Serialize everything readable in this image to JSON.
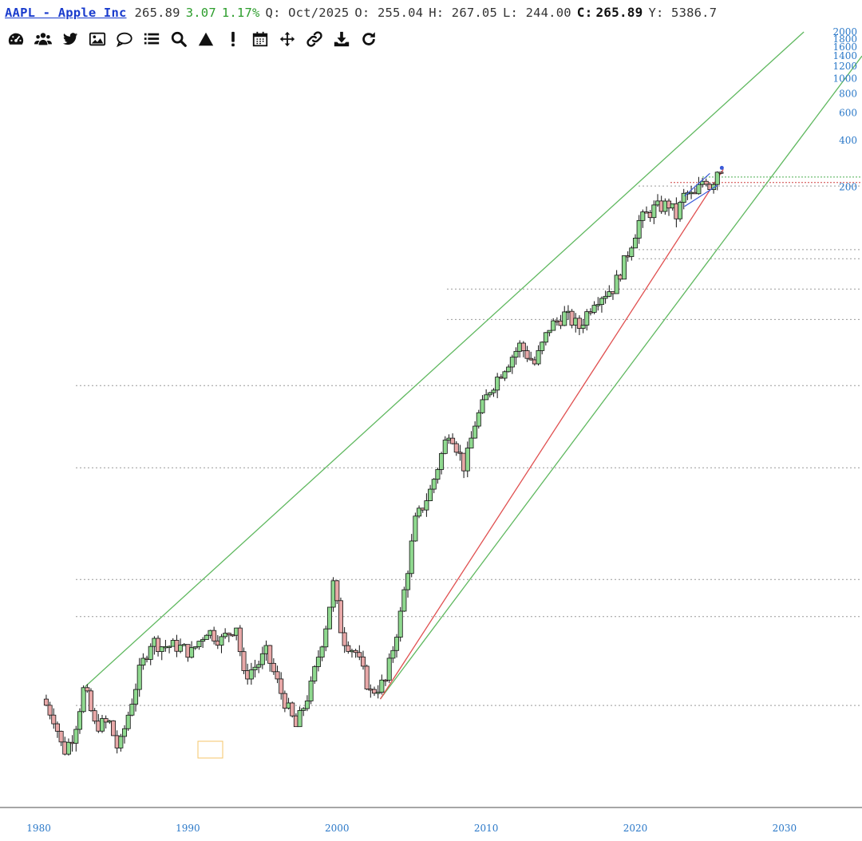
{
  "header": {
    "symbol": "AAPL - Apple Inc",
    "last": "265.89",
    "change": "3.07",
    "change_pct": "1.17%",
    "period": "Q: Oct/2025",
    "open": "O: 255.04",
    "high": "H: 267.05",
    "low": "L: 244.00",
    "close_label": "C:",
    "close_value": "265.89",
    "extra": "Y: 5386.7"
  },
  "toolbar": [
    {
      "name": "dashboard-icon"
    },
    {
      "name": "users-icon"
    },
    {
      "name": "twitter-icon"
    },
    {
      "name": "image-icon"
    },
    {
      "name": "comment-icon"
    },
    {
      "name": "list-icon"
    },
    {
      "name": "search-icon"
    },
    {
      "name": "triangle-icon"
    },
    {
      "name": "exclamation-icon"
    },
    {
      "name": "calendar-icon"
    },
    {
      "name": "move-icon"
    },
    {
      "name": "link-icon"
    },
    {
      "name": "download-icon"
    },
    {
      "name": "refresh-icon"
    }
  ],
  "colors": {
    "up": "#8fd98f",
    "down": "#e8a8a8",
    "trendline": "#5fb85f",
    "redline": "#e05050",
    "axis": "#2a78c8"
  },
  "chart_data": {
    "type": "candlestick",
    "scale": "log",
    "x_ticks": [
      "1980",
      "1990",
      "2000",
      "2010",
      "2020",
      "2030"
    ],
    "y_ticks": [
      "2000",
      "1800",
      "1600",
      "1400",
      "1200",
      "1000",
      "800",
      "600",
      "400",
      "200"
    ],
    "xlim": [
      1977.4,
      2035.2
    ],
    "ylim": [
      0.02,
      2000
    ],
    "support_levels": [
      0.091,
      0.34,
      0.59,
      3.1,
      10.5,
      28,
      44,
      69,
      79,
      203
    ],
    "trendlines": [
      {
        "color": "green",
        "points": [
          [
            1983.1,
            0.12
          ],
          [
            2031.3,
            2000
          ]
        ]
      },
      {
        "color": "green",
        "points": [
          [
            2002.9,
            0.1
          ],
          [
            2035.2,
            1400
          ]
        ]
      },
      {
        "color": "red",
        "points": [
          [
            2002.9,
            0.1
          ],
          [
            2025.9,
            260
          ]
        ]
      }
    ],
    "price_path": [
      [
        1980.5,
        0.1
      ],
      [
        1981.3,
        0.075
      ],
      [
        1981.9,
        0.045
      ],
      [
        1982.6,
        0.06
      ],
      [
        1983.3,
        0.12
      ],
      [
        1984.0,
        0.068
      ],
      [
        1985.0,
        0.07
      ],
      [
        1985.6,
        0.046
      ],
      [
        1987.0,
        0.15
      ],
      [
        1987.8,
        0.24
      ],
      [
        1988.5,
        0.22
      ],
      [
        1989.5,
        0.22
      ],
      [
        1990.5,
        0.2
      ],
      [
        1991.5,
        0.28
      ],
      [
        1992.5,
        0.24
      ],
      [
        1993.5,
        0.3
      ],
      [
        1994.0,
        0.14
      ],
      [
        1995.0,
        0.17
      ],
      [
        1995.5,
        0.2
      ],
      [
        1996.5,
        0.11
      ],
      [
        1997.5,
        0.066
      ],
      [
        1998.5,
        0.12
      ],
      [
        1999.5,
        0.3
      ],
      [
        2000.0,
        0.55
      ],
      [
        2000.6,
        0.25
      ],
      [
        2001.5,
        0.2
      ],
      [
        2002.5,
        0.11
      ],
      [
        2003.5,
        0.13
      ],
      [
        2004.5,
        0.35
      ],
      [
        2005.5,
        1.4
      ],
      [
        2006.5,
        2.2
      ],
      [
        2007.8,
        5.6
      ],
      [
        2008.8,
        3.1
      ],
      [
        2009.5,
        6.0
      ],
      [
        2010.5,
        10.0
      ],
      [
        2011.5,
        14.0
      ],
      [
        2012.5,
        19.0
      ],
      [
        2013.5,
        14.5
      ],
      [
        2014.5,
        25.0
      ],
      [
        2015.5,
        30.0
      ],
      [
        2016.5,
        25.0
      ],
      [
        2017.5,
        38.0
      ],
      [
        2018.8,
        45.0
      ],
      [
        2019.5,
        65.0
      ],
      [
        2020.5,
        120.0
      ],
      [
        2021.5,
        145.0
      ],
      [
        2022.5,
        155.0
      ],
      [
        2023.0,
        130.0
      ],
      [
        2023.6,
        185.0
      ],
      [
        2024.2,
        170.0
      ],
      [
        2024.9,
        235.0
      ],
      [
        2025.3,
        200.0
      ],
      [
        2025.8,
        265.89
      ]
    ]
  }
}
